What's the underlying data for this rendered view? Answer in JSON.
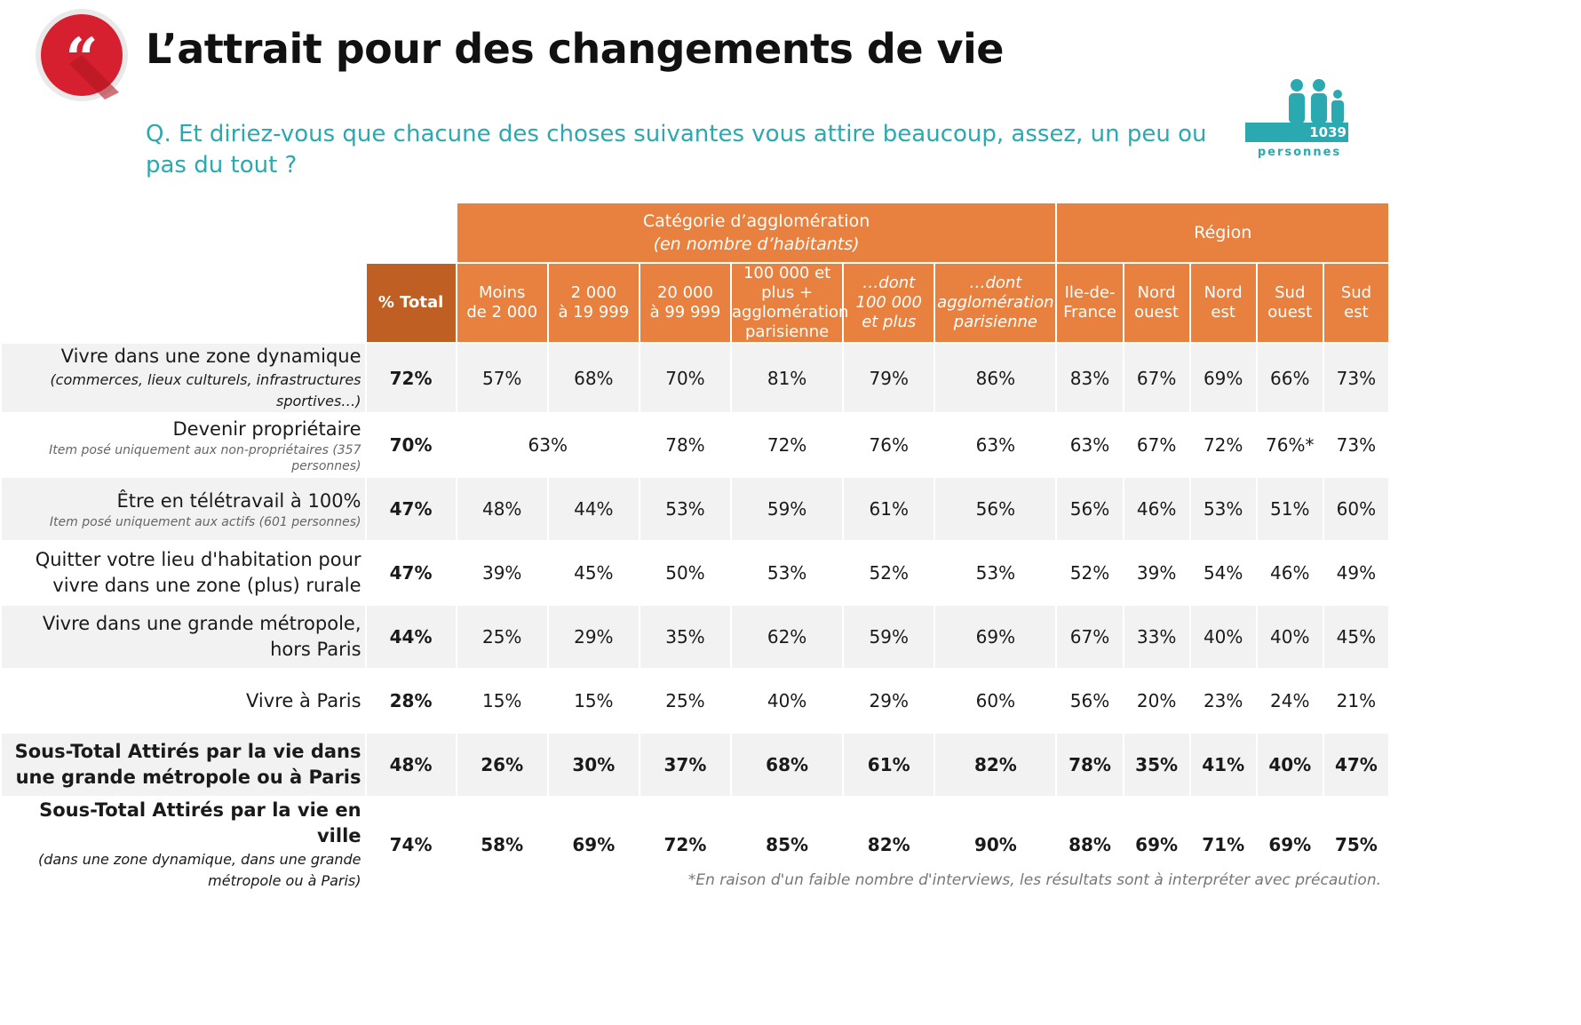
{
  "header": {
    "quote_icon": "quotation-mark-icon",
    "title": "L’attrait pour des changements de vie",
    "question": "Q. Et diriez-vous que chacune des choses suivantes vous attire beaucoup, assez, un peu ou pas du tout ?",
    "sample_icon": "people-group-icon",
    "sample_count": "1039",
    "sample_label": "personnes"
  },
  "colors": {
    "accent_orange": "#e8813f",
    "total_orange": "#bf5f23",
    "teal": "#2aa9b0",
    "logo_red": "#d6202f"
  },
  "table": {
    "group_agglo": "Catégorie d’agglomération",
    "group_agglo_sub": "(en nombre d’habitants)",
    "group_region": "Région",
    "col_total": "% Total",
    "cols": [
      {
        "l1": "Moins",
        "l2": "de 2 000",
        "l3": "",
        "l4": ""
      },
      {
        "l1": "2 000",
        "l2": "à 19 999",
        "l3": "",
        "l4": ""
      },
      {
        "l1": "20 000",
        "l2": "à 99 999",
        "l3": "",
        "l4": ""
      },
      {
        "l1": "100 000 et",
        "l2": "plus +",
        "l3": "agglomération",
        "l4": "parisienne"
      },
      {
        "l1": "…dont",
        "l2": "100 000",
        "l3": "et plus",
        "l4": ""
      },
      {
        "l1": "…dont",
        "l2": "agglomération",
        "l3": "parisienne",
        "l4": ""
      },
      {
        "l1": "Ile-de-",
        "l2": "France",
        "l3": "",
        "l4": ""
      },
      {
        "l1": "Nord",
        "l2": "ouest",
        "l3": "",
        "l4": ""
      },
      {
        "l1": "Nord",
        "l2": "est",
        "l3": "",
        "l4": ""
      },
      {
        "l1": "Sud",
        "l2": "ouest",
        "l3": "",
        "l4": ""
      },
      {
        "l1": "Sud",
        "l2": "est",
        "l3": "",
        "l4": ""
      }
    ],
    "rows": [
      {
        "label": "Vivre dans une zone dynamique",
        "sub": "(commerces, lieux culturels, infrastructures sportives…)",
        "note": "",
        "total": "72%",
        "values": [
          "57%",
          "68%",
          "70%",
          "81%",
          "79%",
          "86%",
          "83%",
          "67%",
          "69%",
          "66%",
          "73%"
        ]
      },
      {
        "label": "Devenir propriétaire",
        "sub": "",
        "note": "Item posé uniquement aux non-propriétaires (357 personnes)",
        "total": "70%",
        "merged_small": "63%",
        "values": [
          "78%",
          "72%",
          "76%",
          "63%",
          "63%",
          "67%",
          "72%",
          "76%*",
          "73%"
        ]
      },
      {
        "label": "Être en télétravail à 100%",
        "sub": "",
        "note": "Item posé uniquement aux actifs (601 personnes)",
        "total": "47%",
        "values": [
          "48%",
          "44%",
          "53%",
          "59%",
          "61%",
          "56%",
          "56%",
          "46%",
          "53%",
          "51%",
          "60%"
        ]
      },
      {
        "label": "Quitter votre lieu d'habitation pour vivre dans une zone (plus) rurale",
        "sub": "",
        "note": "",
        "total": "47%",
        "values": [
          "39%",
          "45%",
          "50%",
          "53%",
          "52%",
          "53%",
          "52%",
          "39%",
          "54%",
          "46%",
          "49%"
        ]
      },
      {
        "label": "Vivre dans une grande métropole, hors Paris",
        "sub": "",
        "note": "",
        "total": "44%",
        "values": [
          "25%",
          "29%",
          "35%",
          "62%",
          "59%",
          "69%",
          "67%",
          "33%",
          "40%",
          "40%",
          "45%"
        ]
      },
      {
        "label": "Vivre à Paris",
        "sub": "",
        "note": "",
        "total": "28%",
        "values": [
          "15%",
          "15%",
          "25%",
          "40%",
          "29%",
          "60%",
          "56%",
          "20%",
          "23%",
          "24%",
          "21%"
        ]
      },
      {
        "label": "Sous-Total Attirés par la vie dans une grande métropole ou à Paris",
        "sub": "",
        "note": "",
        "total": "48%",
        "values": [
          "26%",
          "30%",
          "37%",
          "68%",
          "61%",
          "82%",
          "78%",
          "35%",
          "41%",
          "40%",
          "47%"
        ]
      },
      {
        "label": "Sous-Total Attirés par la vie en ville",
        "sub": "(dans une zone dynamique, dans une grande métropole ou à Paris)",
        "note": "",
        "total": "74%",
        "values": [
          "58%",
          "69%",
          "72%",
          "85%",
          "82%",
          "90%",
          "88%",
          "69%",
          "71%",
          "69%",
          "75%"
        ]
      }
    ]
  },
  "footnote": "*En raison d'un faible nombre d'interviews, les résultats sont à interpréter avec précaution."
}
